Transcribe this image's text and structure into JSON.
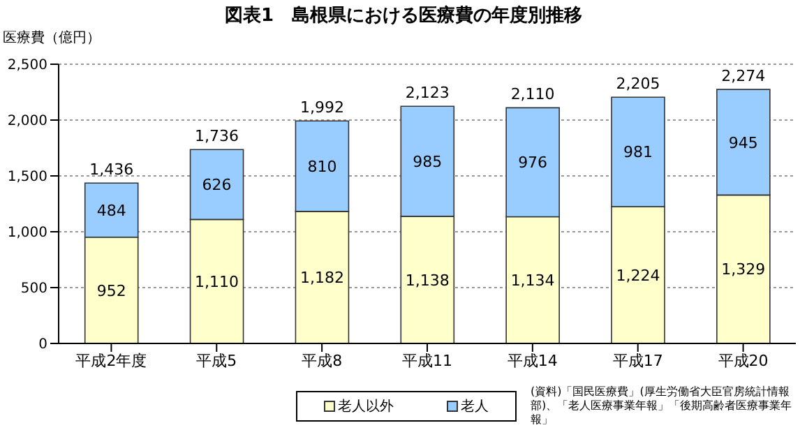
{
  "chart_data": {
    "type": "bar",
    "title": "図表1　島根県における医療費の年度別推移",
    "ylabel": "医療費（億円）",
    "categories": [
      "平成2年度",
      "平成5",
      "平成8",
      "平成11",
      "平成14",
      "平成17",
      "平成20"
    ],
    "series": [
      {
        "name": "老人以外",
        "color": "#ffffcc",
        "values": [
          952,
          1110,
          1182,
          1138,
          1134,
          1224,
          1329
        ],
        "value_labels": [
          "952",
          "1,110",
          "1,182",
          "1,138",
          "1,134",
          "1,224",
          "1,329"
        ]
      },
      {
        "name": "老人",
        "color": "#99ccff",
        "values": [
          484,
          626,
          810,
          985,
          976,
          981,
          945
        ],
        "value_labels": [
          "484",
          "626",
          "810",
          "985",
          "976",
          "981",
          "945"
        ]
      }
    ],
    "stacked": true,
    "totals": [
      "1,436",
      "1,736",
      "1,992",
      "2,123",
      "2,110",
      "2,205",
      "2,274"
    ],
    "ylim": [
      0,
      2500
    ],
    "yticks": [
      {
        "value": 0,
        "label": "0"
      },
      {
        "value": 500,
        "label": "500"
      },
      {
        "value": 1000,
        "label": "1,000"
      },
      {
        "value": 1500,
        "label": "1,500"
      },
      {
        "value": 2000,
        "label": "2,000"
      },
      {
        "value": 2500,
        "label": "2,500"
      }
    ],
    "grid": "y",
    "legend": "bottom",
    "annotations": [
      "(資料)「国民医療費」(厚生労働省大臣官房統計情報部)、「老人医療事業年報」「後期高齢者医療事業年報」"
    ]
  }
}
